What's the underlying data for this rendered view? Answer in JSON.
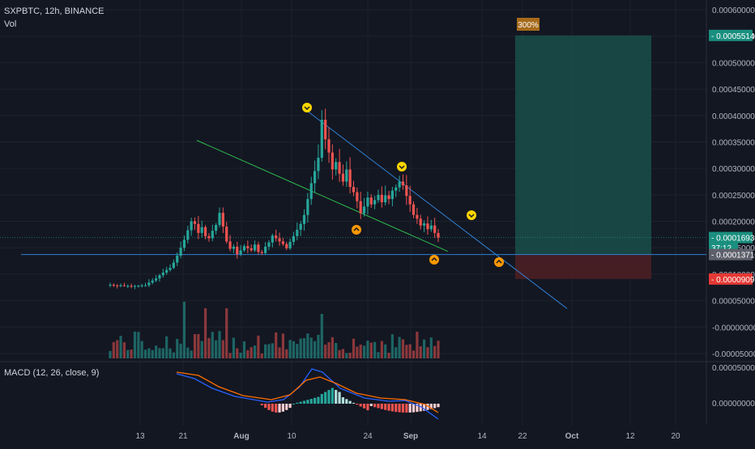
{
  "header": {
    "symbol_line": "SXPBTC, 12h, BINANCE",
    "vol_label": "Vol"
  },
  "macd": {
    "label": "MACD (12, 26, close, 9)",
    "ticks": [
      "0.00005000",
      "0.00000000"
    ]
  },
  "colors": {
    "background": "#131722",
    "up": "#26a69a",
    "down": "#ef5350",
    "grid": "#1e222d",
    "trend_blue": "#2f7fd1",
    "trend_green": "#2fbf4f",
    "macd_line": "#2962ff",
    "signal_line": "#ff6d00",
    "target_zone": "#1a4f4a",
    "stop_zone": "#4a1f24",
    "marker_yellow": "#ffd600",
    "marker_orange": "#ff9800"
  },
  "position": {
    "target_label": "300%"
  },
  "price_tags": [
    {
      "text": "0.00055140",
      "value": 0.0005514,
      "color": "#1a8f7f"
    },
    {
      "text": "0.00016930",
      "value": 0.0001693,
      "color": "#1a8f7f"
    },
    {
      "text": "37:12",
      "value": 0.000161,
      "color": "#1a8f7f"
    },
    {
      "text": "0.00013710",
      "value": 0.0001371,
      "color": "#5d606b"
    },
    {
      "text": "0.00009091",
      "value": 9.091e-05,
      "color": "#e53935"
    }
  ],
  "chart_data": {
    "type": "candlestick",
    "title": "SXPBTC, 12h, BINANCE",
    "y_ticks": [
      "0.00060000",
      "0.00055000",
      "0.00050000",
      "0.00045000",
      "0.00040000",
      "0.00035000",
      "0.00030000",
      "0.00025000",
      "0.00020000",
      "0.00015000",
      "0.00010000",
      "0.00005000",
      "-0.00000000",
      "-0.00005000"
    ],
    "ylim": [
      -5e-05,
      0.0006
    ],
    "x_ticks": [
      "13",
      "21",
      "Aug",
      "10",
      "24",
      "Sep",
      "14",
      "22",
      "Oct",
      "12",
      "20"
    ],
    "grid": true,
    "close_approx": [
      8e-05,
      7.9e-05,
      7.8e-05,
      7.9e-05,
      7.8e-05,
      7.8e-05,
      7.7e-05,
      7.8e-05,
      7.8e-05,
      7.9e-05,
      7.9e-05,
      8.4e-05,
      8.8e-05,
      9.2e-05,
      9.8e-05,
      0.000103,
      0.000108,
      0.000112,
      0.000122,
      0.000135,
      0.00015,
      0.000165,
      0.000183,
      0.0002,
      0.000195,
      0.000178,
      0.000189,
      0.000172,
      0.000168,
      0.000182,
      0.000193,
      0.000216,
      0.00019,
      0.000162,
      0.000148,
      0.000152,
      0.000138,
      0.000145,
      0.000153,
      0.000149,
      0.000145,
      0.000156,
      0.000142,
      0.00014,
      0.000152,
      0.00016,
      0.000173,
      0.000168,
      0.000162,
      0.000157,
      0.000149,
      0.000161,
      0.000172,
      0.000184,
      0.000195,
      0.000212,
      0.000242,
      0.000272,
      0.000295,
      0.00032,
      0.000392,
      0.000355,
      0.00033,
      0.000298,
      0.000312,
      0.00029,
      0.000275,
      0.000298,
      0.000265,
      0.000255,
      0.000238,
      0.000215,
      0.000228,
      0.000245,
      0.000232,
      0.00024,
      0.00025,
      0.000236,
      0.000249,
      0.000242,
      0.000258,
      0.000264,
      0.000275,
      0.000268,
      0.000248,
      0.000232,
      0.000212,
      0.000205,
      0.000192,
      0.000196,
      0.000185,
      0.000192,
      0.000178,
      0.000169
    ]
  }
}
